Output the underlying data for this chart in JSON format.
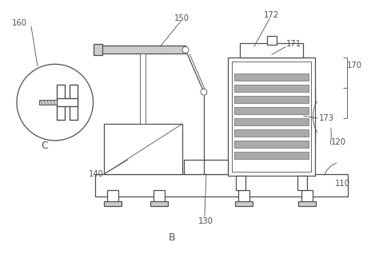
{
  "bg_color": "#ffffff",
  "line_color": "#505050",
  "fill_light": "#cccccc",
  "fill_medium": "#aaaaaa",
  "lw_main": 0.9,
  "lw_thin": 0.6
}
